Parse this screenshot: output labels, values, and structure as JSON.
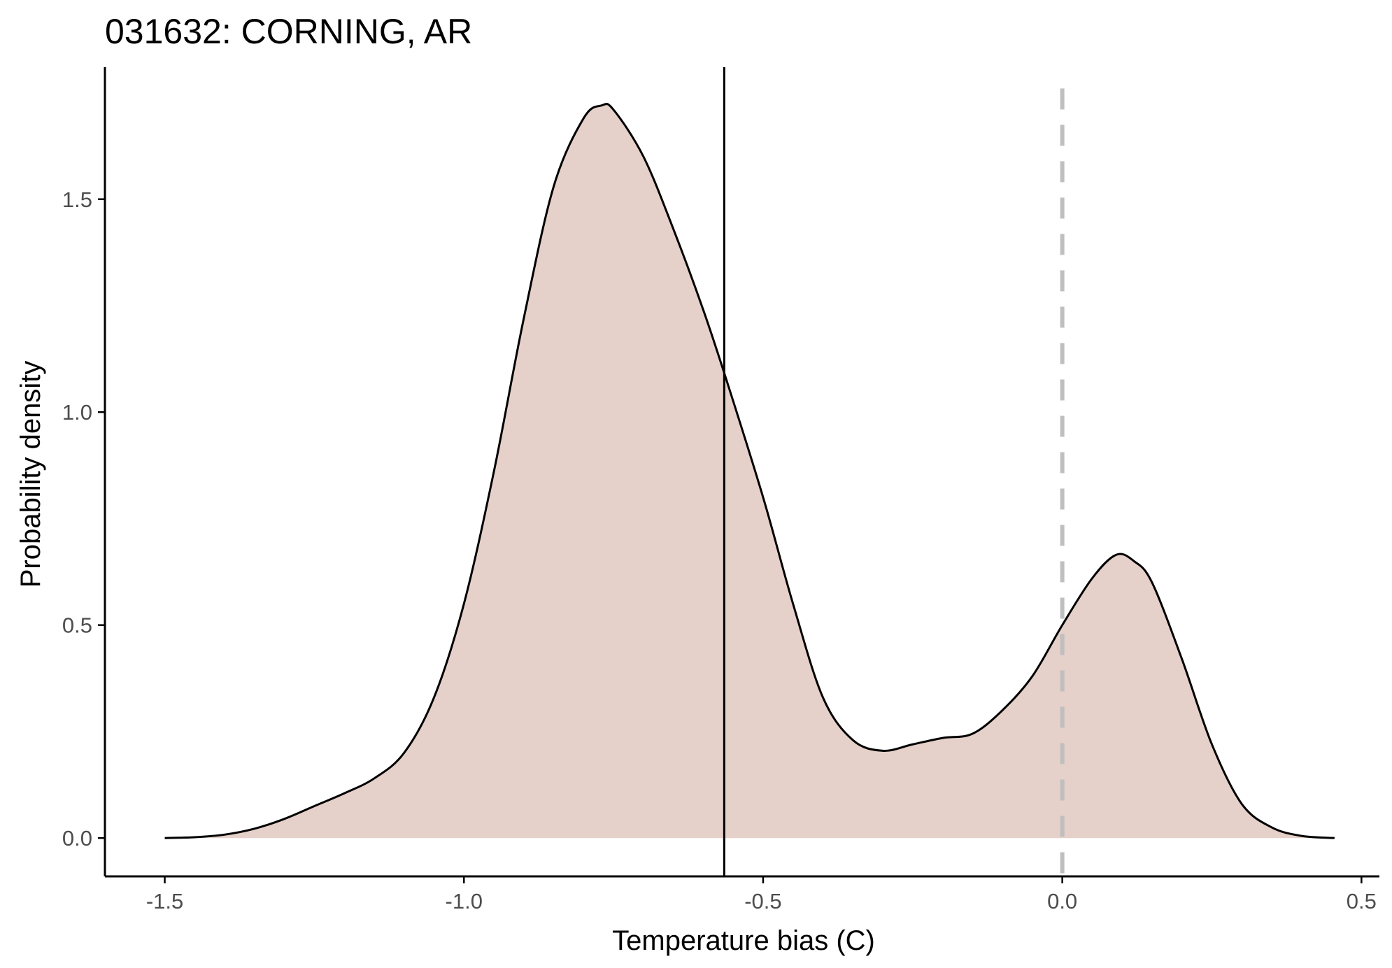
{
  "title": "031632: CORNING, AR",
  "colors": {
    "fill": "#e6d0ca",
    "curve": "#000000",
    "reference_line": "#000000",
    "zero_line": "#bfbfbf",
    "axis": "#000000",
    "tick_label": "#4d4d4d"
  },
  "chart_data": {
    "type": "area",
    "title": "031632: CORNING, AR",
    "xlabel": "Temperature bias (C)",
    "ylabel": "Probability density",
    "xlim": [
      -1.6,
      0.53
    ],
    "ylim": [
      -0.09,
      1.81
    ],
    "x_ticks": [
      -1.5,
      -1.0,
      -0.5,
      0.0,
      0.5
    ],
    "x_tick_labels": [
      "-1.5",
      "-1.0",
      "-0.5",
      "0.0",
      "0.5"
    ],
    "y_ticks": [
      0.0,
      0.5,
      1.0,
      1.5
    ],
    "y_tick_labels": [
      "0.0",
      "0.5",
      "1.0",
      "1.5"
    ],
    "grid": false,
    "legend": "none",
    "x": [
      -1.5,
      -1.45,
      -1.4,
      -1.35,
      -1.3,
      -1.25,
      -1.2,
      -1.15,
      -1.1,
      -1.05,
      -1.0,
      -0.95,
      -0.9,
      -0.85,
      -0.8,
      -0.77,
      -0.75,
      -0.7,
      -0.65,
      -0.6,
      -0.56,
      -0.5,
      -0.45,
      -0.4,
      -0.35,
      -0.3,
      -0.25,
      -0.2,
      -0.15,
      -0.1,
      -0.05,
      0.0,
      0.05,
      0.09,
      0.12,
      0.15,
      0.2,
      0.25,
      0.3,
      0.35,
      0.4,
      0.455
    ],
    "y": [
      0.0,
      0.002,
      0.008,
      0.022,
      0.045,
      0.075,
      0.105,
      0.14,
      0.2,
      0.33,
      0.55,
      0.86,
      1.22,
      1.53,
      1.69,
      1.72,
      1.71,
      1.6,
      1.43,
      1.24,
      1.07,
      0.8,
      0.55,
      0.33,
      0.23,
      0.205,
      0.22,
      0.235,
      0.245,
      0.3,
      0.38,
      0.5,
      0.61,
      0.665,
      0.65,
      0.6,
      0.42,
      0.22,
      0.08,
      0.025,
      0.005,
      0.0
    ],
    "annotations": [
      {
        "type": "vline",
        "x": -0.565,
        "style": "solid",
        "color": "#000000"
      },
      {
        "type": "vline",
        "x": 0.0,
        "style": "dashed",
        "color": "#bfbfbf"
      }
    ]
  }
}
